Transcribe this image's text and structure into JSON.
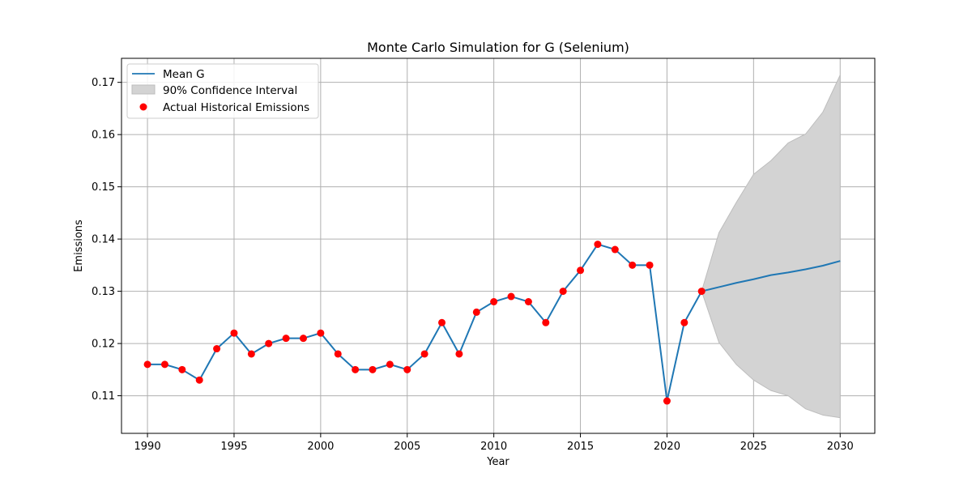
{
  "chart_data": {
    "type": "line",
    "title": "Monte Carlo Simulation for G (Selenium)",
    "xlabel": "Year",
    "ylabel": "Emissions",
    "xlim": [
      1988.5,
      2032
    ],
    "ylim": [
      0.1028,
      0.1746
    ],
    "xticks": [
      1990,
      1995,
      2000,
      2005,
      2010,
      2015,
      2020,
      2025,
      2030
    ],
    "yticks": [
      0.11,
      0.12,
      0.13,
      0.14,
      0.15,
      0.16,
      0.17
    ],
    "ytick_labels": [
      "0.11",
      "0.12",
      "0.13",
      "0.14",
      "0.15",
      "0.16",
      "0.17"
    ],
    "grid": true,
    "legend_position": "top-left",
    "colors": {
      "mean": "#1f77b4",
      "band_fill": "#d3d3d3",
      "band_edge": "#bdbdbd",
      "actual": "#ff0000"
    },
    "series": [
      {
        "name": "Mean G",
        "kind": "line",
        "x": [
          1990,
          1991,
          1992,
          1993,
          1994,
          1995,
          1996,
          1997,
          1998,
          1999,
          2000,
          2001,
          2002,
          2003,
          2004,
          2005,
          2006,
          2007,
          2008,
          2009,
          2010,
          2011,
          2012,
          2013,
          2014,
          2015,
          2016,
          2017,
          2018,
          2019,
          2020,
          2021,
          2022,
          2023,
          2024,
          2025,
          2026,
          2027,
          2028,
          2029,
          2030
        ],
        "y": [
          0.116,
          0.116,
          0.115,
          0.113,
          0.119,
          0.122,
          0.118,
          0.12,
          0.121,
          0.121,
          0.122,
          0.118,
          0.115,
          0.115,
          0.116,
          0.115,
          0.118,
          0.124,
          0.118,
          0.126,
          0.128,
          0.129,
          0.128,
          0.124,
          0.13,
          0.134,
          0.139,
          0.138,
          0.135,
          0.135,
          0.109,
          0.124,
          0.13,
          0.1308,
          0.1316,
          0.1323,
          0.1331,
          0.1336,
          0.1342,
          0.1349,
          0.1358
        ]
      },
      {
        "name": "90% Confidence Interval",
        "kind": "band",
        "x": [
          2022,
          2023,
          2024,
          2025,
          2026,
          2027,
          2028,
          2029,
          2030
        ],
        "lower": [
          0.13,
          0.1202,
          0.116,
          0.113,
          0.111,
          0.11,
          0.1075,
          0.1063,
          0.1058
        ],
        "upper": [
          0.13,
          0.1412,
          0.147,
          0.1524,
          0.155,
          0.1584,
          0.1601,
          0.1643,
          0.1714
        ]
      },
      {
        "name": "Actual Historical Emissions",
        "kind": "scatter",
        "x": [
          1990,
          1991,
          1992,
          1993,
          1994,
          1995,
          1996,
          1997,
          1998,
          1999,
          2000,
          2001,
          2002,
          2003,
          2004,
          2005,
          2006,
          2007,
          2008,
          2009,
          2010,
          2011,
          2012,
          2013,
          2014,
          2015,
          2016,
          2017,
          2018,
          2019,
          2020,
          2021,
          2022
        ],
        "y": [
          0.116,
          0.116,
          0.115,
          0.113,
          0.119,
          0.122,
          0.118,
          0.12,
          0.121,
          0.121,
          0.122,
          0.118,
          0.115,
          0.115,
          0.116,
          0.115,
          0.118,
          0.124,
          0.118,
          0.126,
          0.128,
          0.129,
          0.128,
          0.124,
          0.13,
          0.134,
          0.139,
          0.138,
          0.135,
          0.135,
          0.109,
          0.124,
          0.13
        ]
      }
    ]
  }
}
